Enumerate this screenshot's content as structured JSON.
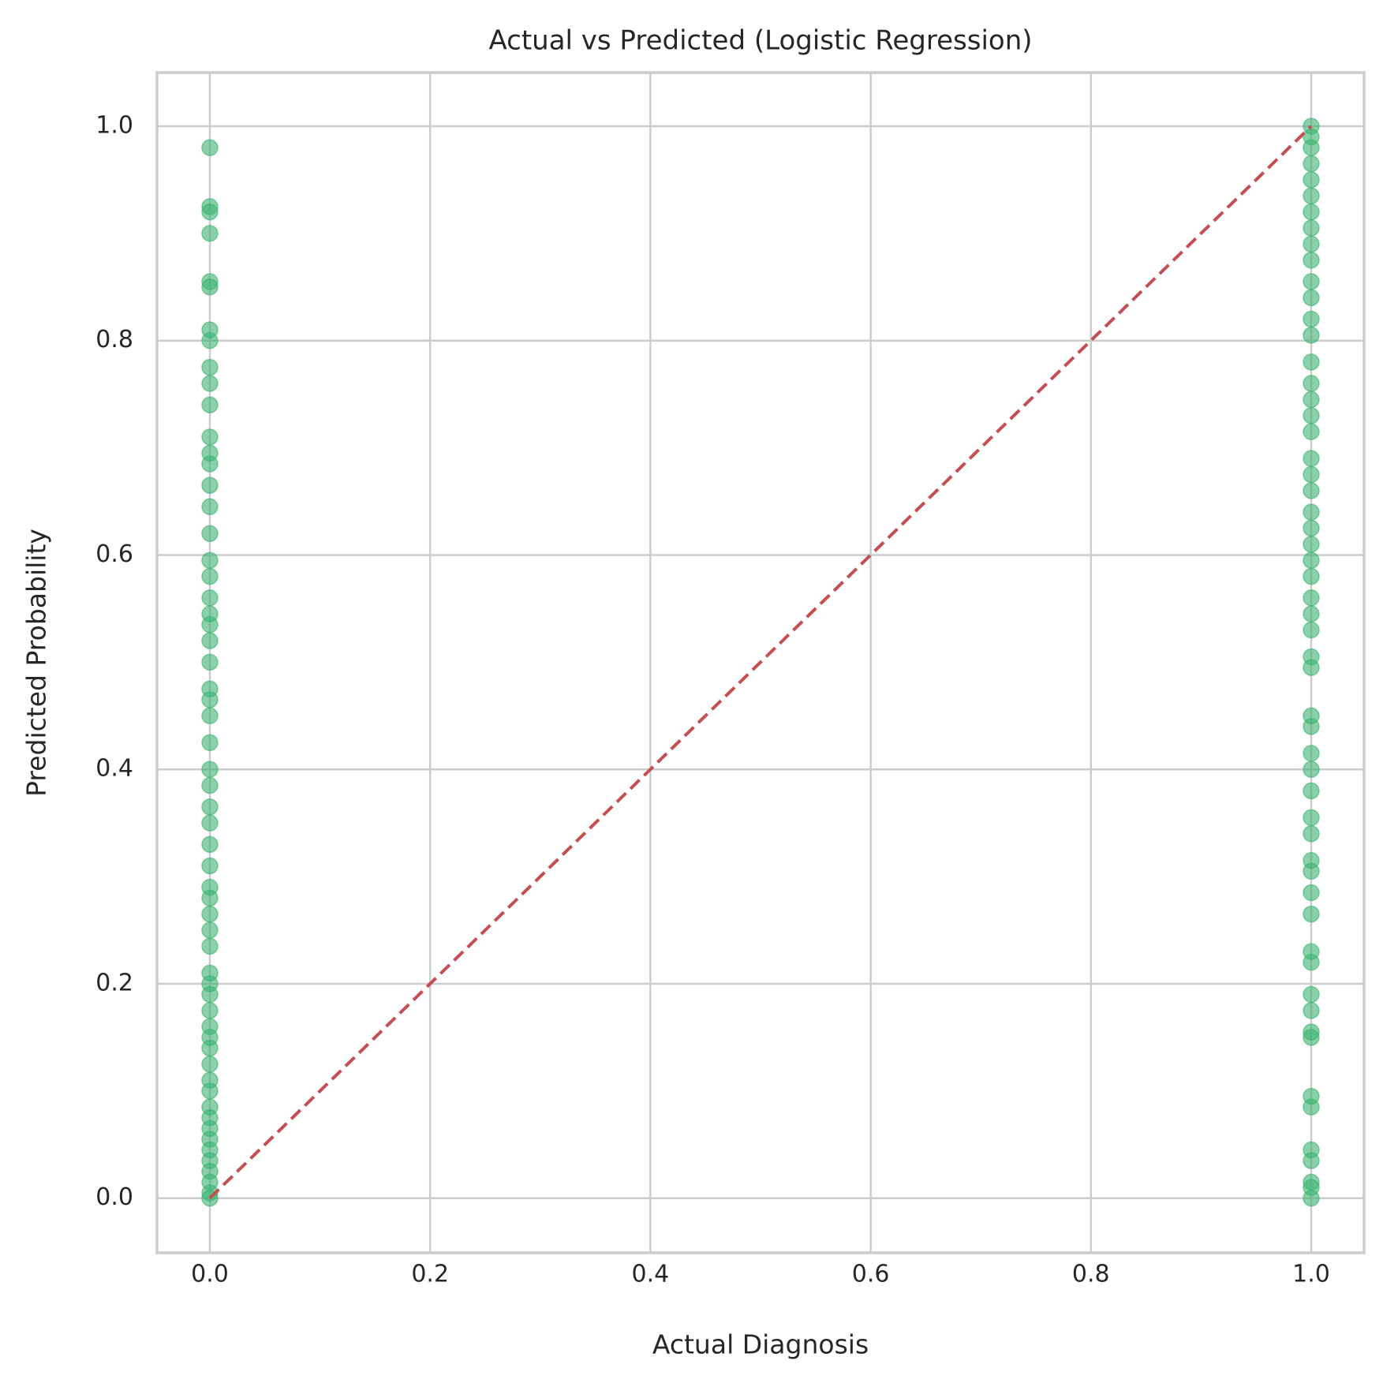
{
  "chart_data": {
    "type": "scatter",
    "title": "Actual vs Predicted (Logistic Regression)",
    "x_label": "Actual Diagnosis",
    "y_label": "Predicted Probability",
    "color": "#3cb371",
    "grid": true,
    "xlim": [
      -0.048,
      1.048
    ],
    "ylim": [
      -0.051,
      1.05
    ],
    "xticks": [
      {
        "value": 0,
        "label": "0.0"
      },
      0.2,
      0.4,
      0.6,
      0.8,
      {
        "value": 1,
        "label": "1.0"
      }
    ],
    "yticks": [
      {
        "value": 0,
        "label": "0.0"
      },
      0.2,
      0.4,
      0.6,
      0.8,
      {
        "value": 1,
        "label": "1.0"
      }
    ],
    "x": [
      0,
      0,
      0,
      0,
      0,
      0,
      0,
      0,
      0,
      0,
      0,
      0,
      0,
      0,
      0,
      0,
      0,
      0,
      0,
      0,
      0,
      0,
      0,
      0,
      0,
      0,
      0,
      0,
      0,
      0,
      0,
      0,
      0,
      0,
      0,
      0,
      0,
      0,
      0,
      0,
      0,
      0,
      0,
      0,
      0,
      0,
      0,
      0,
      0,
      0,
      0,
      0,
      0,
      0,
      0,
      0,
      0,
      0,
      0,
      1,
      1,
      1,
      1,
      1,
      1,
      1,
      1,
      1,
      1,
      1,
      1,
      1,
      1,
      1,
      1,
      1,
      1,
      1,
      1,
      1,
      1,
      1,
      1,
      1,
      1,
      1,
      1,
      1,
      1,
      1,
      1,
      1,
      1,
      1,
      1,
      1,
      1,
      1,
      1,
      1,
      1,
      1,
      1,
      1,
      1,
      1,
      1,
      1,
      1,
      1,
      1,
      1,
      1,
      1,
      1
    ],
    "values": [
      0.98,
      0.925,
      0.92,
      0.9,
      0.855,
      0.85,
      0.81,
      0.8,
      0.775,
      0.76,
      0.74,
      0.71,
      0.695,
      0.685,
      0.665,
      0.645,
      0.62,
      0.595,
      0.58,
      0.56,
      0.545,
      0.535,
      0.52,
      0.5,
      0.475,
      0.465,
      0.45,
      0.425,
      0.4,
      0.385,
      0.365,
      0.35,
      0.33,
      0.31,
      0.29,
      0.28,
      0.265,
      0.25,
      0.235,
      0.21,
      0.2,
      0.19,
      0.175,
      0.16,
      0.15,
      0.14,
      0.125,
      0.11,
      0.1,
      0.085,
      0.075,
      0.065,
      0.055,
      0.045,
      0.035,
      0.025,
      0.015,
      0.005,
      0.0,
      1.0,
      0.99,
      0.98,
      0.965,
      0.95,
      0.935,
      0.92,
      0.905,
      0.89,
      0.875,
      0.855,
      0.84,
      0.82,
      0.805,
      0.78,
      0.76,
      0.745,
      0.73,
      0.715,
      0.69,
      0.675,
      0.66,
      0.64,
      0.625,
      0.61,
      0.595,
      0.58,
      0.56,
      0.545,
      0.53,
      0.505,
      0.495,
      0.45,
      0.44,
      0.415,
      0.4,
      0.38,
      0.355,
      0.34,
      0.315,
      0.305,
      0.285,
      0.265,
      0.23,
      0.22,
      0.19,
      0.175,
      0.155,
      0.15,
      0.095,
      0.085,
      0.045,
      0.035,
      0.015,
      0.01,
      0.0
    ],
    "diagonal": {
      "x": [
        0,
        1
      ],
      "y": [
        0,
        1
      ],
      "color": "#c44e52",
      "dashed": true
    }
  }
}
